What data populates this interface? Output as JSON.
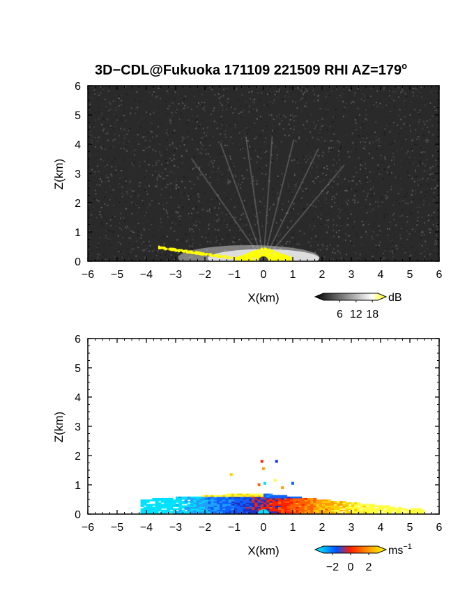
{
  "figure": {
    "title_main": "3D−CDL@Fukuoka 171109 221509 RHI AZ=179",
    "title_superscript": "o"
  },
  "chart_data": [
    {
      "type": "heatmap",
      "name": "reflectivity",
      "title": "",
      "xlabel": "X(km)",
      "ylabel": "Z(km)",
      "xlim": [
        -6,
        6
      ],
      "ylim": [
        0,
        6
      ],
      "xticks": [
        "−6",
        "−5",
        "−4",
        "−3",
        "−2",
        "−1",
        "0",
        "1",
        "2",
        "3",
        "4",
        "5",
        "6"
      ],
      "yticks": [
        "0",
        "1",
        "2",
        "3",
        "4",
        "5",
        "6"
      ],
      "colorbar": {
        "unit": "dB",
        "ticks": [
          "6",
          "12",
          "18"
        ],
        "tick_values": [
          6,
          12,
          18
        ],
        "range": [
          0,
          20
        ],
        "colors": [
          "#000000",
          "#ffffff",
          "#ffff00"
        ]
      },
      "background_color": "#2a2a2a",
      "echo_color": "#ffff00",
      "echo_region": {
        "x_range": [
          -4.0,
          1.0
        ],
        "z_range": [
          0,
          0.6
        ]
      }
    },
    {
      "type": "heatmap",
      "name": "doppler_velocity",
      "title": "",
      "xlabel": "X(km)",
      "ylabel": "Z(km)",
      "xlim": [
        -6,
        6
      ],
      "ylim": [
        0,
        6
      ],
      "xticks": [
        "−6",
        "−5",
        "−4",
        "−3",
        "−2",
        "−1",
        "0",
        "1",
        "2",
        "3",
        "4",
        "5",
        "6"
      ],
      "yticks": [
        "0",
        "1",
        "2",
        "3",
        "4",
        "5",
        "6"
      ],
      "colorbar": {
        "unit": "ms",
        "unit_superscript": "−1",
        "ticks": [
          "−2",
          "0",
          "2"
        ],
        "tick_values": [
          -2,
          0,
          2
        ],
        "range": [
          -3,
          3
        ],
        "colors": [
          "#00ffff",
          "#0050ff",
          "#ff2000",
          "#ffff00"
        ]
      },
      "data_region": {
        "x_range": [
          -4.2,
          5.4
        ],
        "z_range": [
          0,
          0.7
        ]
      }
    }
  ]
}
